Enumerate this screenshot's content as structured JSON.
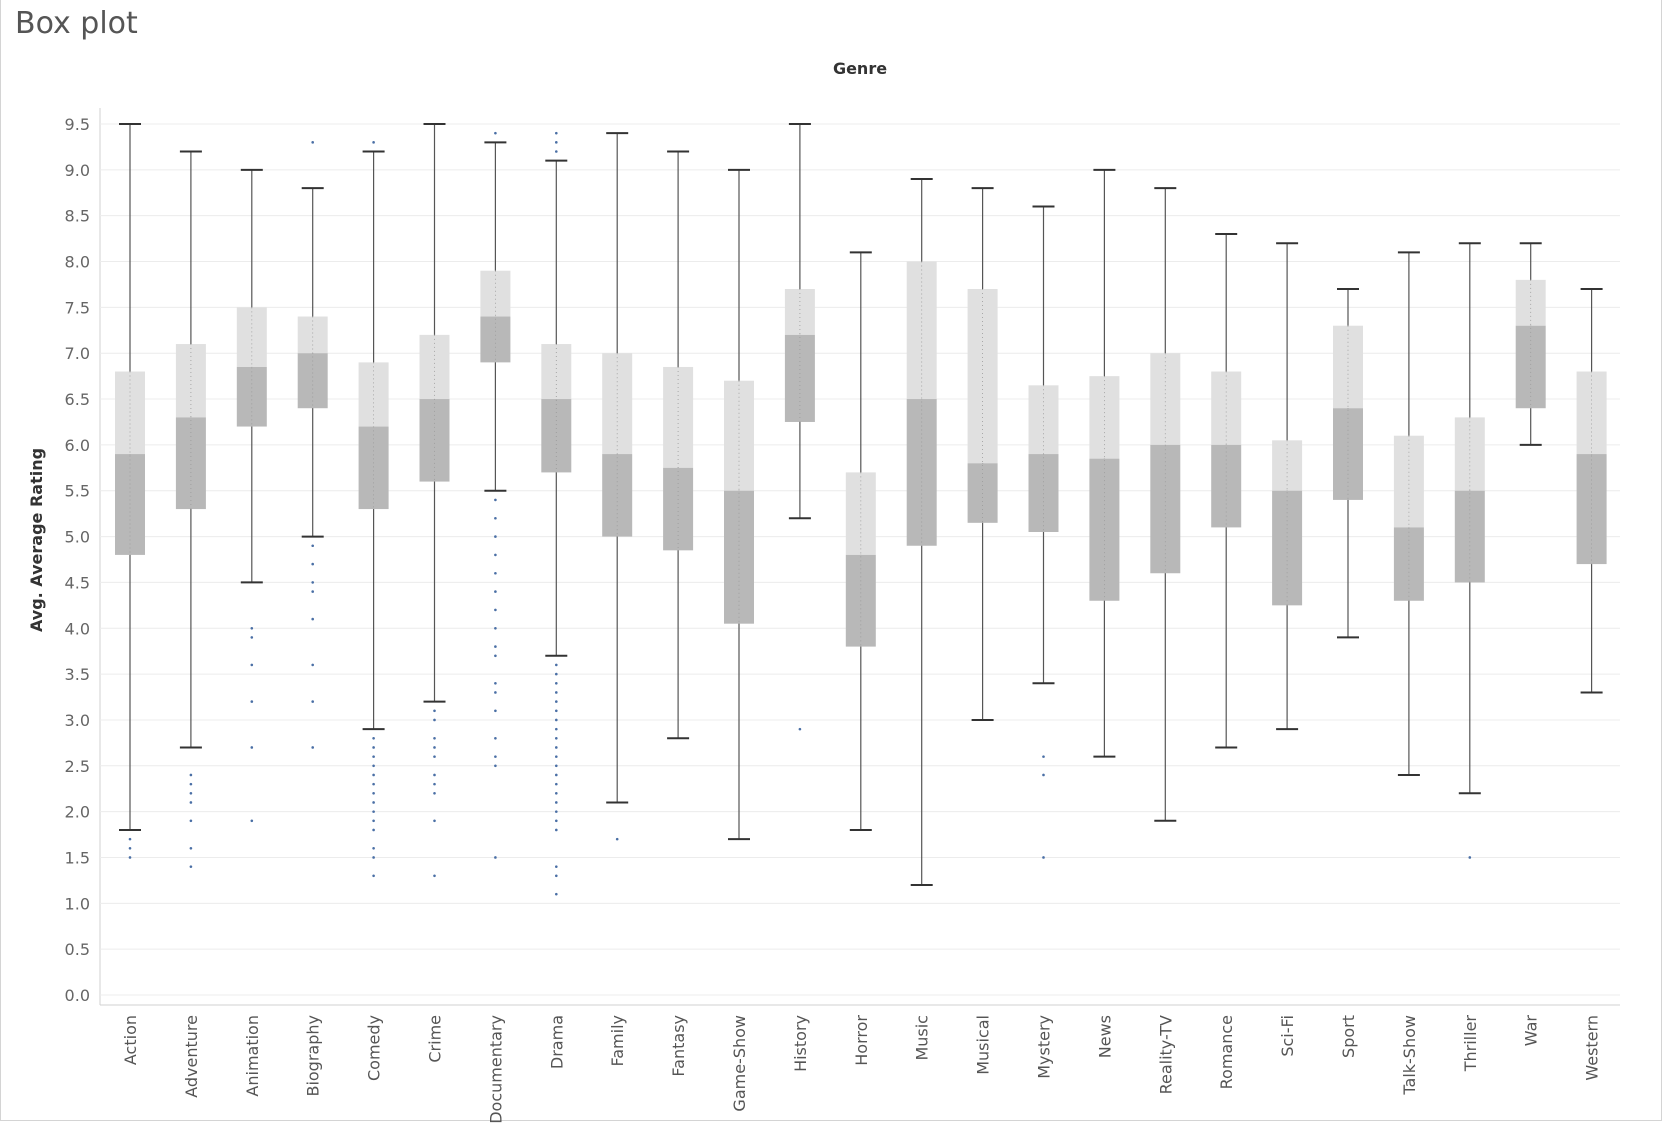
{
  "title": "Box plot",
  "chart_data": {
    "type": "box",
    "title": "Box plot",
    "xlabel": "Genre",
    "ylabel": "Avg. Average Rating",
    "ylim": [
      0,
      9.7
    ],
    "yticks": [
      "0.0",
      "0.5",
      "1.0",
      "1.5",
      "2.0",
      "2.5",
      "3.0",
      "3.5",
      "4.0",
      "4.5",
      "5.0",
      "5.5",
      "6.0",
      "6.5",
      "7.0",
      "7.5",
      "8.0",
      "8.5",
      "9.0",
      "9.5"
    ],
    "grid": true,
    "colors": {
      "upper_box": "#e0e0e0",
      "lower_box": "#b8b8b8",
      "whisker": "#555555",
      "points": "#4a6fa5",
      "grid": "#ececec"
    },
    "categories": [
      "Action",
      "Adventure",
      "Animation",
      "Biography",
      "Comedy",
      "Crime",
      "Documentary",
      "Drama",
      "Family",
      "Fantasy",
      "Game-Show",
      "History",
      "Horror",
      "Music",
      "Musical",
      "Mystery",
      "News",
      "Reality-TV",
      "Romance",
      "Sci-Fi",
      "Sport",
      "Talk-Show",
      "Thriller",
      "War",
      "Western"
    ],
    "boxes": [
      {
        "min": 1.8,
        "q1": 4.8,
        "median": 5.9,
        "q3": 6.8,
        "max": 9.5,
        "outliers": [
          1.5,
          1.6,
          1.7
        ]
      },
      {
        "min": 2.7,
        "q1": 5.3,
        "median": 6.3,
        "q3": 7.1,
        "max": 9.2,
        "outliers": [
          1.4,
          1.6,
          1.9,
          2.1,
          2.2,
          2.3,
          2.4
        ]
      },
      {
        "min": 4.5,
        "q1": 6.2,
        "median": 6.85,
        "q3": 7.5,
        "max": 9.0,
        "outliers": [
          1.9,
          2.7,
          3.2,
          3.6,
          3.9,
          4.0
        ]
      },
      {
        "min": 5.0,
        "q1": 6.4,
        "median": 7.0,
        "q3": 7.4,
        "max": 8.8,
        "outliers": [
          2.7,
          3.2,
          3.6,
          4.1,
          4.4,
          4.5,
          4.7,
          4.9,
          9.3
        ]
      },
      {
        "min": 2.9,
        "q1": 5.3,
        "median": 6.2,
        "q3": 6.9,
        "max": 9.2,
        "outliers": [
          1.3,
          1.5,
          1.6,
          1.8,
          1.9,
          2.0,
          2.1,
          2.2,
          2.3,
          2.4,
          2.5,
          2.6,
          2.7,
          2.8,
          9.3
        ]
      },
      {
        "min": 3.2,
        "q1": 5.6,
        "median": 6.5,
        "q3": 7.2,
        "max": 9.5,
        "outliers": [
          1.3,
          1.9,
          2.2,
          2.3,
          2.4,
          2.6,
          2.7,
          2.8,
          3.0,
          3.1
        ]
      },
      {
        "min": 5.5,
        "q1": 6.9,
        "median": 7.4,
        "q3": 7.9,
        "max": 9.3,
        "outliers": [
          1.5,
          2.5,
          2.6,
          2.8,
          3.1,
          3.3,
          3.4,
          3.7,
          3.8,
          4.0,
          4.2,
          4.4,
          4.6,
          4.8,
          5.0,
          5.2,
          5.4,
          9.4
        ]
      },
      {
        "min": 3.7,
        "q1": 5.7,
        "median": 6.5,
        "q3": 7.1,
        "max": 9.1,
        "outliers": [
          1.1,
          1.3,
          1.4,
          1.8,
          1.9,
          2.0,
          2.1,
          2.2,
          2.3,
          2.4,
          2.5,
          2.6,
          2.7,
          2.8,
          2.9,
          3.0,
          3.1,
          3.2,
          3.3,
          3.4,
          3.5,
          3.6,
          9.2,
          9.3,
          9.4
        ]
      },
      {
        "min": 2.1,
        "q1": 5.0,
        "median": 5.9,
        "q3": 7.0,
        "max": 9.4,
        "outliers": [
          1.7
        ]
      },
      {
        "min": 2.8,
        "q1": 4.85,
        "median": 5.75,
        "q3": 6.85,
        "max": 9.2,
        "outliers": []
      },
      {
        "min": 1.7,
        "q1": 4.05,
        "median": 5.5,
        "q3": 6.7,
        "max": 9.0,
        "outliers": []
      },
      {
        "min": 5.2,
        "q1": 6.25,
        "median": 7.2,
        "q3": 7.7,
        "max": 9.5,
        "outliers": [
          2.9
        ]
      },
      {
        "min": 1.8,
        "q1": 3.8,
        "median": 4.8,
        "q3": 5.7,
        "max": 8.1,
        "outliers": []
      },
      {
        "min": 1.2,
        "q1": 4.9,
        "median": 6.5,
        "q3": 8.0,
        "max": 8.9,
        "outliers": []
      },
      {
        "min": 3.0,
        "q1": 5.15,
        "median": 5.8,
        "q3": 7.7,
        "max": 8.8,
        "outliers": []
      },
      {
        "min": 3.4,
        "q1": 5.05,
        "median": 5.9,
        "q3": 6.65,
        "max": 8.6,
        "outliers": [
          1.5,
          2.4,
          2.6
        ]
      },
      {
        "min": 2.6,
        "q1": 4.3,
        "median": 5.85,
        "q3": 6.75,
        "max": 9.0,
        "outliers": []
      },
      {
        "min": 1.9,
        "q1": 4.6,
        "median": 6.0,
        "q3": 7.0,
        "max": 8.8,
        "outliers": []
      },
      {
        "min": 2.7,
        "q1": 5.1,
        "median": 6.0,
        "q3": 6.8,
        "max": 8.3,
        "outliers": []
      },
      {
        "min": 2.9,
        "q1": 4.25,
        "median": 5.5,
        "q3": 6.05,
        "max": 8.2,
        "outliers": []
      },
      {
        "min": 3.9,
        "q1": 5.4,
        "median": 6.4,
        "q3": 7.3,
        "max": 7.7,
        "outliers": []
      },
      {
        "min": 2.4,
        "q1": 4.3,
        "median": 5.1,
        "q3": 6.1,
        "max": 8.1,
        "outliers": []
      },
      {
        "min": 2.2,
        "q1": 4.5,
        "median": 5.5,
        "q3": 6.3,
        "max": 8.2,
        "outliers": [
          1.5
        ]
      },
      {
        "min": 6.0,
        "q1": 6.4,
        "median": 7.3,
        "q3": 7.8,
        "max": 8.2,
        "outliers": []
      },
      {
        "min": 3.3,
        "q1": 4.7,
        "median": 5.9,
        "q3": 6.8,
        "max": 7.7,
        "outliers": []
      }
    ]
  }
}
